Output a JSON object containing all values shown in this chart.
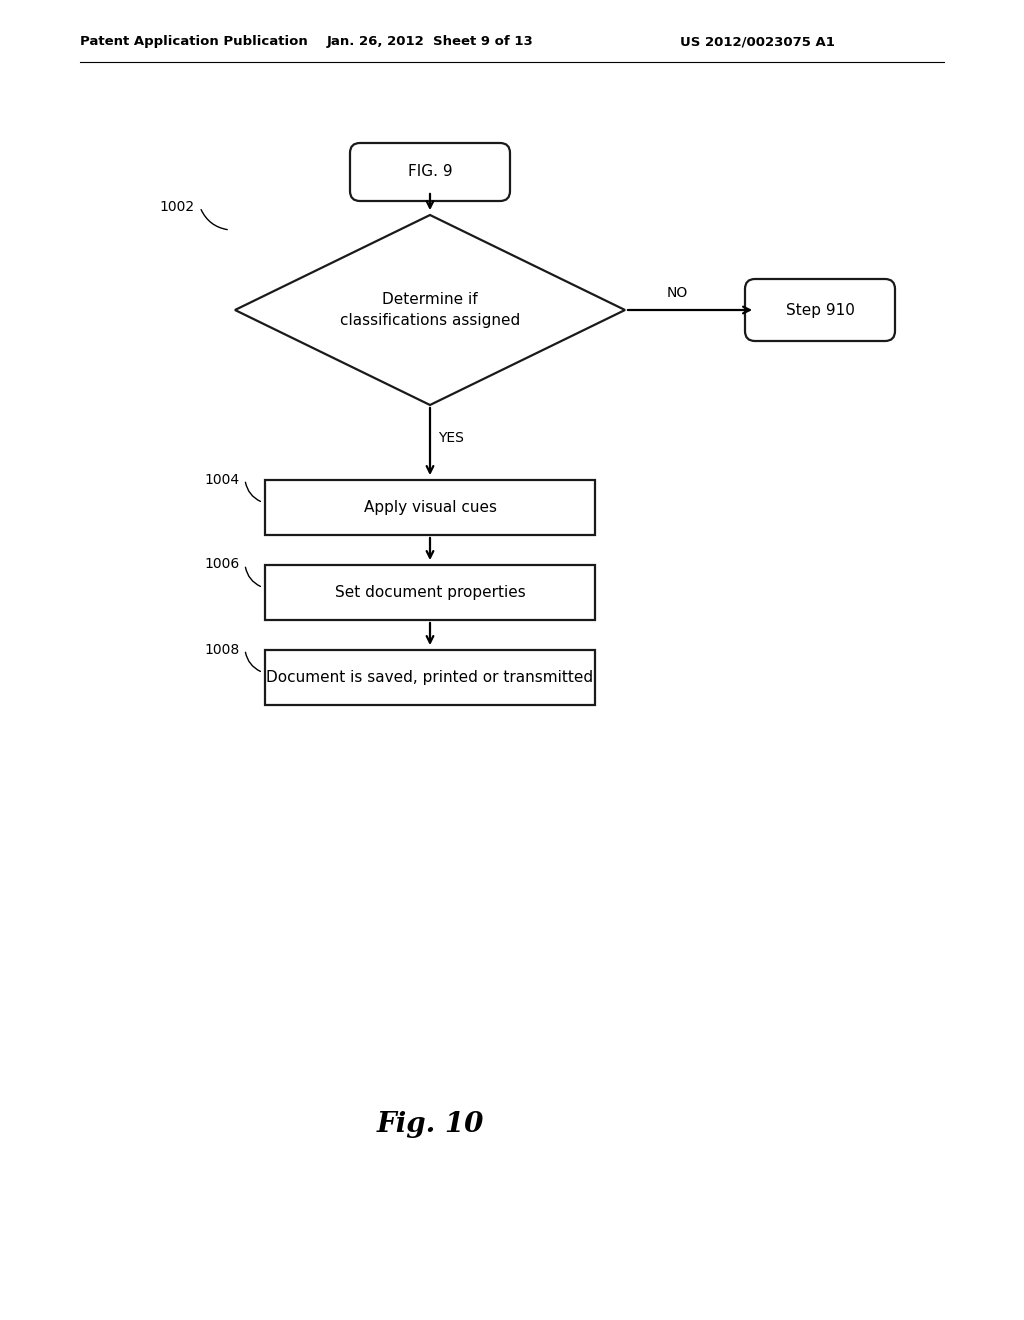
{
  "bg_color": "#ffffff",
  "header_left": "Patent Application Publication",
  "header_center": "Jan. 26, 2012  Sheet 9 of 13",
  "header_right": "US 2012/0023075 A1",
  "fig_label": "Fig. 10",
  "start_label": "FIG. 9",
  "decision_label": "Determine if\nclassifications assigned",
  "decision_ref": "1002",
  "no_label": "NO",
  "step910_label": "Step 910",
  "yes_label": "YES",
  "box1_label": "Apply visual cues",
  "box1_ref": "1004",
  "box2_label": "Set document properties",
  "box2_ref": "1006",
  "box3_label": "Document is saved, printed or transmitted",
  "box3_ref": "1008",
  "text_color": "#000000",
  "shape_edge_color": "#1a1a1a",
  "shape_fill_color": "#ffffff",
  "lw": 1.6,
  "header_fontsize": 9.5,
  "body_fontsize": 11,
  "small_fontsize": 10,
  "fig_fontsize": 20
}
